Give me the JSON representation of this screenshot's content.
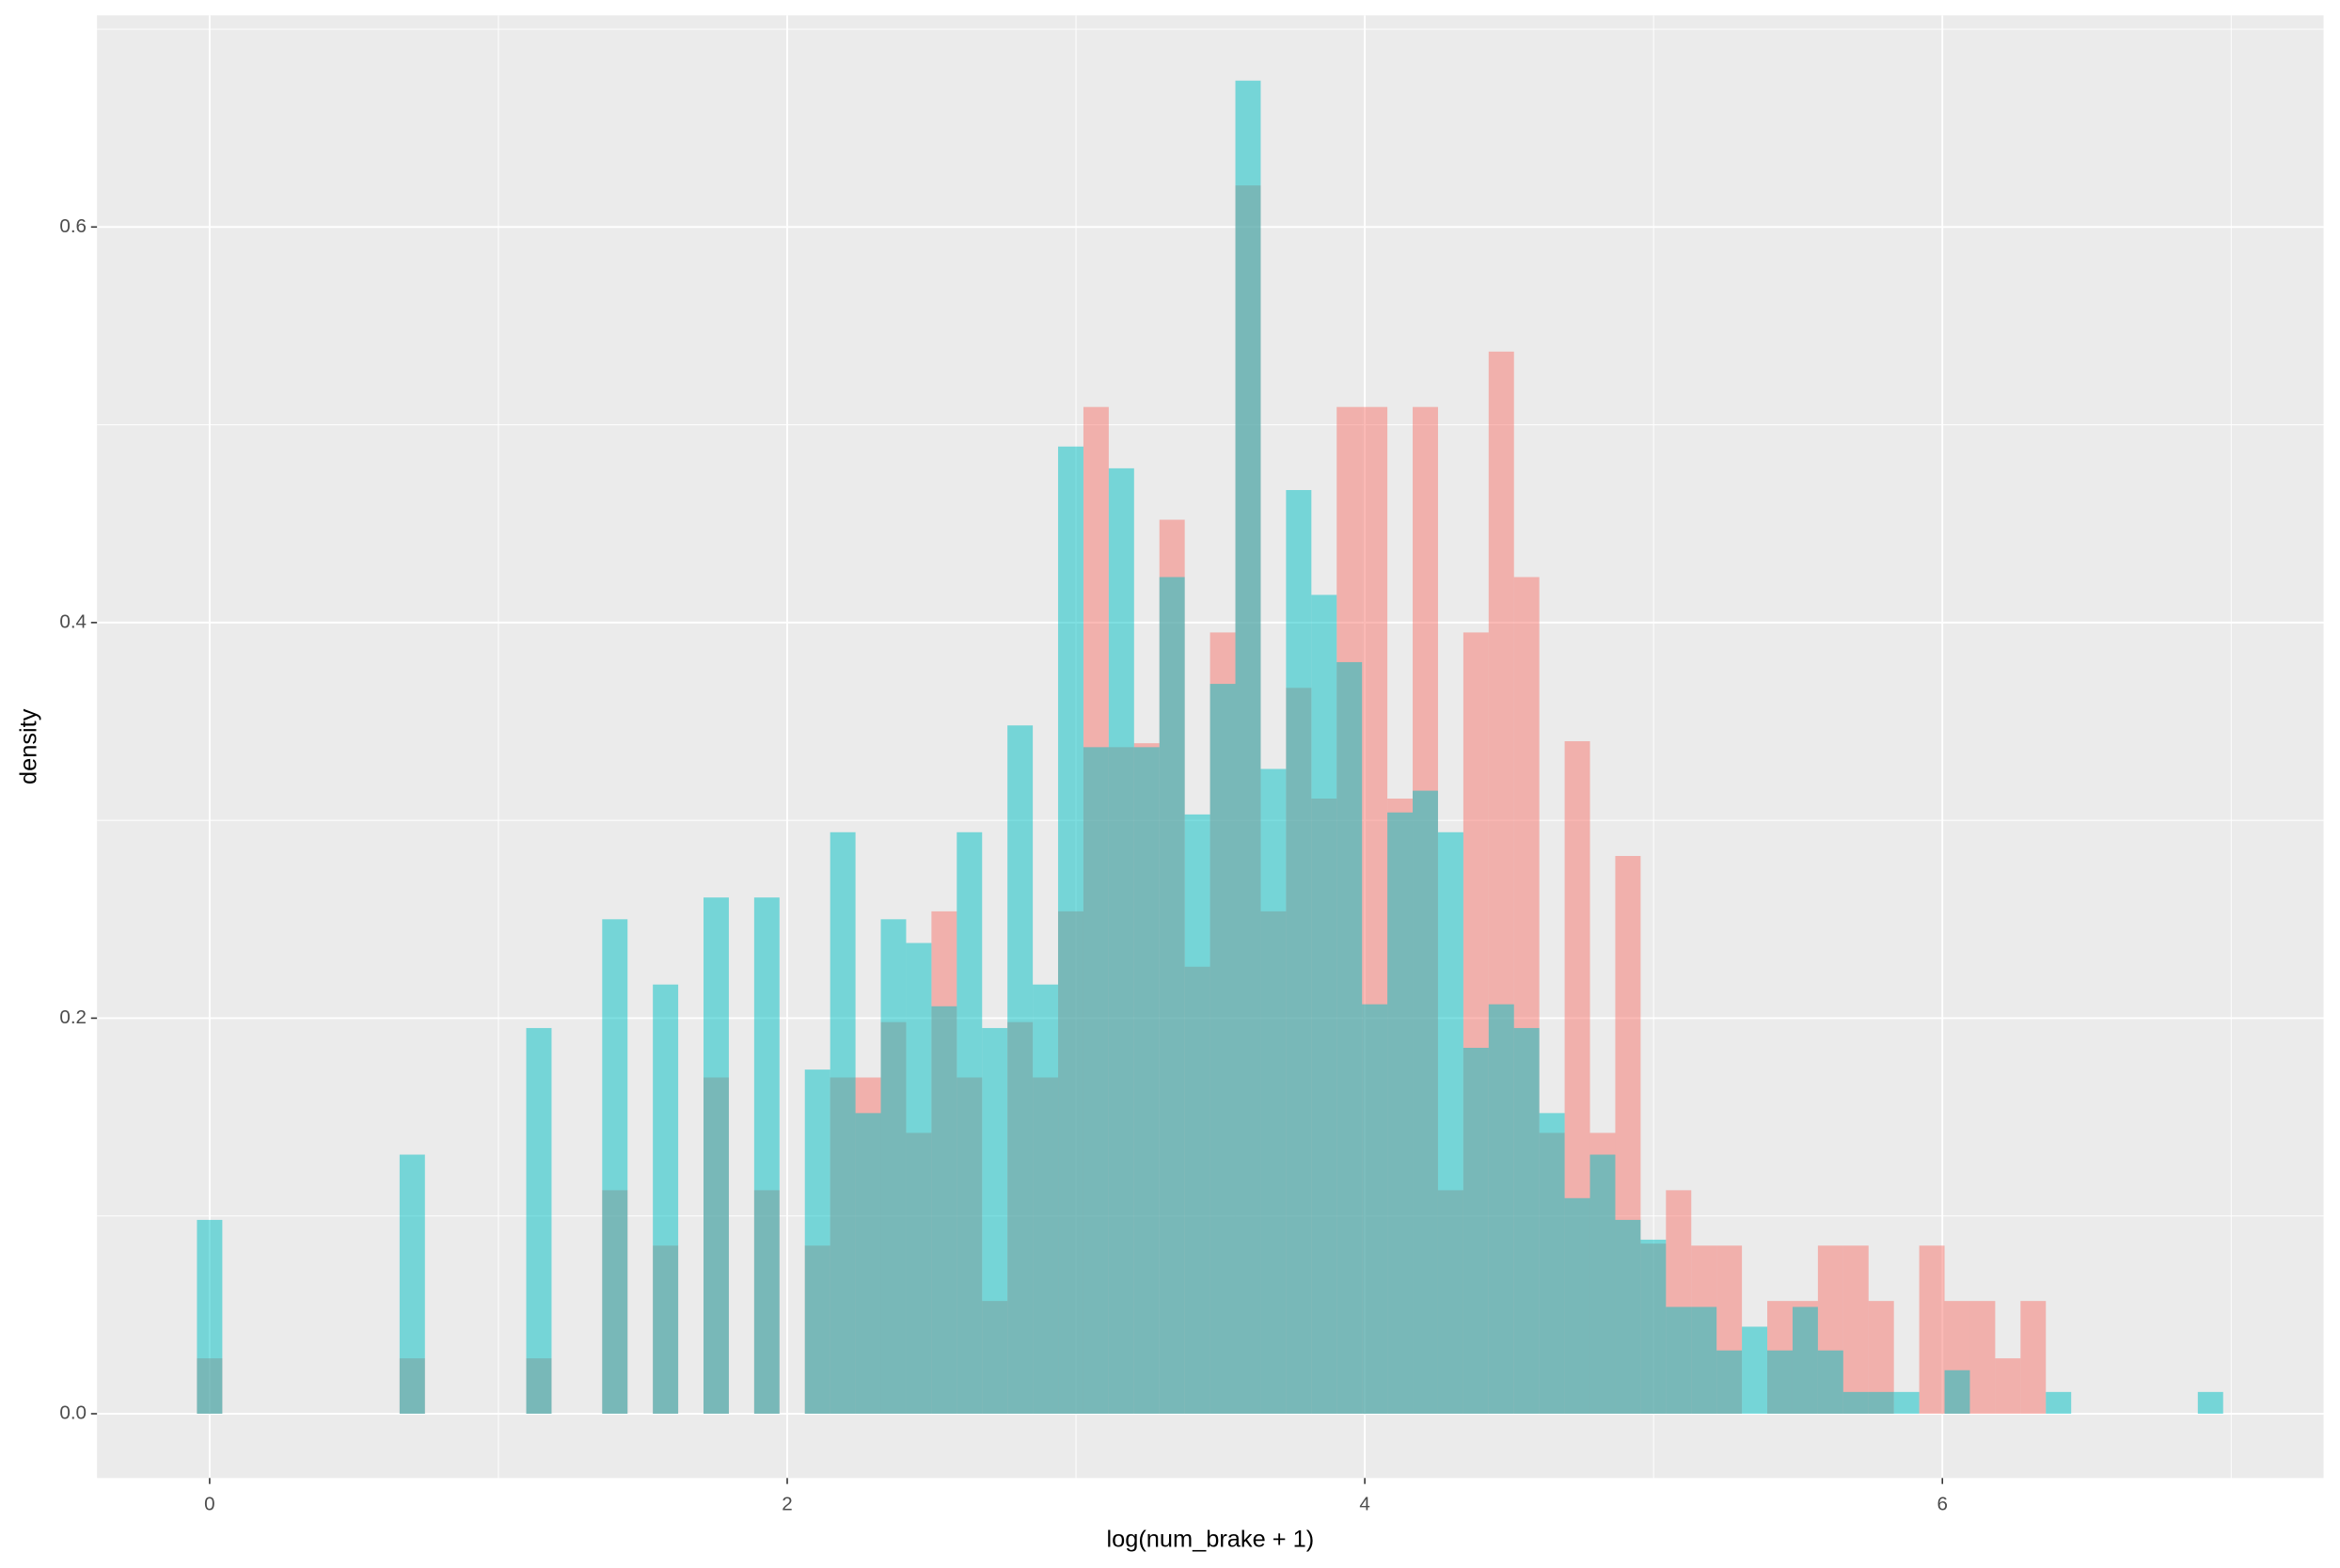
{
  "chart_data": {
    "type": "histogram",
    "xlabel": "log(num_brake + 1)",
    "ylabel": "density",
    "bins": [
      -0.0439,
      0.0439,
      0.1316,
      0.2193,
      0.307,
      0.3947,
      0.4824,
      0.5701,
      0.6578,
      0.7455,
      0.8332,
      0.9209,
      1.0086,
      1.0963,
      1.184,
      1.2717,
      1.3594,
      1.4471,
      1.5348,
      1.6225,
      1.7102,
      1.7979,
      1.8856,
      1.9733,
      2.061,
      2.1487,
      2.2364,
      2.3241,
      2.4118,
      2.4995,
      2.5872,
      2.6749,
      2.7626,
      2.8503,
      2.938,
      3.0257,
      3.1134,
      3.2011,
      3.2888,
      3.3765,
      3.4642,
      3.5519,
      3.6396,
      3.7273,
      3.815,
      3.9027,
      3.9904,
      4.0781,
      4.1658,
      4.2535,
      4.3412,
      4.4289,
      4.5166,
      4.6043,
      4.692,
      4.7797,
      4.8674,
      4.9551,
      5.0428,
      5.1305,
      5.2182,
      5.3059,
      5.3936,
      5.4813,
      5.569,
      5.6567,
      5.7444,
      5.8321,
      5.9198,
      6.0075,
      6.0952,
      6.1829,
      6.2706,
      6.3583,
      6.446,
      6.5337,
      6.6214,
      6.7091,
      6.7968,
      6.8845,
      6.9722
    ],
    "series": [
      {
        "color": "#F8766D",
        "opacity": 0.5,
        "values": [
          0.028,
          0,
          0,
          0,
          0,
          0,
          0,
          0,
          0.028,
          0,
          0,
          0,
          0,
          0.028,
          0,
          0,
          0.113,
          0,
          0.085,
          0,
          0.17,
          0,
          0.113,
          0,
          0.085,
          0.17,
          0.17,
          0.198,
          0.142,
          0.254,
          0.17,
          0.057,
          0.198,
          0.17,
          0.254,
          0.509,
          0.337,
          0.339,
          0.452,
          0.226,
          0.395,
          0.621,
          0.254,
          0.367,
          0.311,
          0.509,
          0.509,
          0.311,
          0.509,
          0.113,
          0.395,
          0.537,
          0.423,
          0.142,
          0.34,
          0.142,
          0.282,
          0.086,
          0.113,
          0.085,
          0.085,
          0,
          0.057,
          0.057,
          0.085,
          0.085,
          0.057,
          0,
          0.085,
          0.057,
          0.057,
          0.028,
          0.057,
          0,
          0,
          0,
          0,
          0,
          0,
          0
        ]
      },
      {
        "color": "#00BFC4",
        "opacity": 0.5,
        "values": [
          0.098,
          0,
          0,
          0,
          0,
          0,
          0,
          0,
          0.131,
          0,
          0,
          0,
          0,
          0.195,
          0,
          0,
          0.25,
          0,
          0.217,
          0,
          0.261,
          0,
          0.261,
          0,
          0.174,
          0.294,
          0.152,
          0.25,
          0.238,
          0.206,
          0.294,
          0.195,
          0.348,
          0.217,
          0.489,
          0.337,
          0.478,
          0.337,
          0.423,
          0.303,
          0.369,
          0.674,
          0.326,
          0.467,
          0.414,
          0.38,
          0.207,
          0.304,
          0.315,
          0.294,
          0.185,
          0.207,
          0.195,
          0.152,
          0.109,
          0.131,
          0.098,
          0.088,
          0.054,
          0.054,
          0.032,
          0.044,
          0.032,
          0.054,
          0.032,
          0.011,
          0.011,
          0.011,
          0,
          0.022,
          0,
          0,
          0,
          0.011,
          0,
          0,
          0,
          0,
          0,
          0.011
        ]
      }
    ],
    "xlim": [
      -0.39,
      7.32
    ],
    "ylim": [
      -0.0325,
      0.707
    ],
    "xticks": [
      0,
      2,
      4,
      6
    ],
    "yticks": [
      {
        "value": 0,
        "label": "0.0"
      },
      0.2,
      0.4,
      0.6
    ],
    "grid": true,
    "minor_grid": true
  }
}
